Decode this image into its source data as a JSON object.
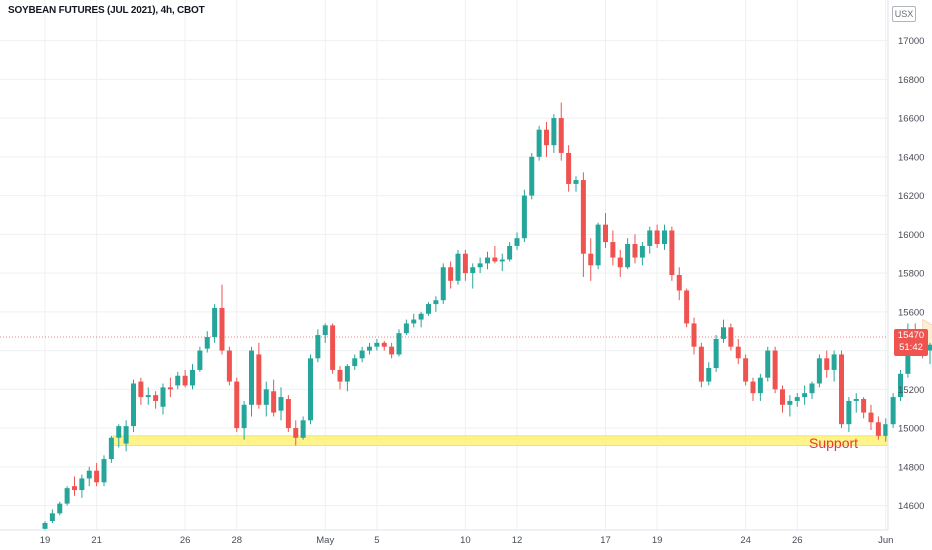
{
  "title": "SOYBEAN FUTURES (JUL 2021), 4h, CBOT",
  "currency_badge": "USX",
  "last_price_tag": {
    "price": "15470",
    "countdown": "51:42"
  },
  "annotations": {
    "support_label": "Support"
  },
  "colors": {
    "up": "#26a69a",
    "down": "#ef5350",
    "support": "#fff176",
    "wedge": "#fde9c8",
    "grid": "#eef0f3"
  },
  "chart_data": {
    "type": "candlestick",
    "title": "SOYBEAN FUTURES (JUL 2021), 4h, CBOT",
    "ylim": [
      14350,
      17100
    ],
    "y_ticks": [
      14600,
      14800,
      15000,
      15200,
      15400,
      15600,
      15800,
      16000,
      16200,
      16400,
      16600,
      16800,
      17000
    ],
    "x_ticks": [
      {
        "label": "19",
        "i": 0
      },
      {
        "label": "21",
        "i": 7
      },
      {
        "label": "26",
        "i": 19
      },
      {
        "label": "28",
        "i": 26
      },
      {
        "label": "May",
        "i": 38
      },
      {
        "label": "5",
        "i": 45
      },
      {
        "label": "10",
        "i": 57
      },
      {
        "label": "12",
        "i": 64
      },
      {
        "label": "17",
        "i": 76
      },
      {
        "label": "19",
        "i": 83
      },
      {
        "label": "24",
        "i": 95
      },
      {
        "label": "26",
        "i": 102
      },
      {
        "label": "Jun",
        "i": 114
      }
    ],
    "last_price": 15470,
    "support_level": [
      14910,
      14960
    ],
    "candles": [
      [
        14480,
        14520,
        14470,
        14510
      ],
      [
        14520,
        14580,
        14510,
        14560
      ],
      [
        14560,
        14620,
        14550,
        14610
      ],
      [
        14610,
        14700,
        14600,
        14690
      ],
      [
        14700,
        14750,
        14650,
        14680
      ],
      [
        14680,
        14760,
        14640,
        14740
      ],
      [
        14740,
        14800,
        14700,
        14780
      ],
      [
        14780,
        14820,
        14700,
        14720
      ],
      [
        14720,
        14860,
        14700,
        14840
      ],
      [
        14840,
        14960,
        14820,
        14950
      ],
      [
        14950,
        15020,
        14900,
        15010
      ],
      [
        14920,
        15040,
        14880,
        15010
      ],
      [
        15010,
        15250,
        14980,
        15230
      ],
      [
        15240,
        15260,
        15120,
        15160
      ],
      [
        15160,
        15210,
        15120,
        15170
      ],
      [
        15170,
        15190,
        15100,
        15140
      ],
      [
        15110,
        15230,
        15070,
        15210
      ],
      [
        15210,
        15260,
        15160,
        15200
      ],
      [
        15220,
        15290,
        15200,
        15270
      ],
      [
        15270,
        15300,
        15210,
        15220
      ],
      [
        15220,
        15330,
        15200,
        15300
      ],
      [
        15300,
        15420,
        15290,
        15400
      ],
      [
        15410,
        15500,
        15390,
        15470
      ],
      [
        15470,
        15640,
        15440,
        15620
      ],
      [
        15620,
        15740,
        15380,
        15400
      ],
      [
        15400,
        15420,
        15220,
        15240
      ],
      [
        15240,
        15260,
        14980,
        15000
      ],
      [
        15000,
        15140,
        14940,
        15120
      ],
      [
        15120,
        15420,
        15060,
        15400
      ],
      [
        15380,
        15440,
        15100,
        15120
      ],
      [
        15120,
        15240,
        15060,
        15200
      ],
      [
        15190,
        15250,
        15060,
        15080
      ],
      [
        15090,
        15210,
        15040,
        15160
      ],
      [
        15150,
        15170,
        14980,
        15000
      ],
      [
        15000,
        15040,
        14910,
        14950
      ],
      [
        14950,
        15060,
        14940,
        15040
      ],
      [
        15040,
        15380,
        15020,
        15360
      ],
      [
        15360,
        15510,
        15340,
        15480
      ],
      [
        15480,
        15540,
        15440,
        15530
      ],
      [
        15530,
        15540,
        15280,
        15300
      ],
      [
        15300,
        15320,
        15200,
        15240
      ],
      [
        15240,
        15330,
        15190,
        15320
      ],
      [
        15320,
        15380,
        15300,
        15360
      ],
      [
        15360,
        15420,
        15340,
        15400
      ],
      [
        15400,
        15440,
        15380,
        15420
      ],
      [
        15420,
        15460,
        15400,
        15440
      ],
      [
        15440,
        15450,
        15400,
        15420
      ],
      [
        15420,
        15440,
        15360,
        15380
      ],
      [
        15380,
        15510,
        15370,
        15490
      ],
      [
        15490,
        15560,
        15480,
        15540
      ],
      [
        15540,
        15590,
        15520,
        15560
      ],
      [
        15560,
        15600,
        15520,
        15590
      ],
      [
        15590,
        15650,
        15580,
        15640
      ],
      [
        15640,
        15680,
        15600,
        15660
      ],
      [
        15660,
        15850,
        15640,
        15830
      ],
      [
        15830,
        15860,
        15720,
        15760
      ],
      [
        15760,
        15920,
        15740,
        15900
      ],
      [
        15900,
        15920,
        15760,
        15800
      ],
      [
        15800,
        15850,
        15720,
        15830
      ],
      [
        15830,
        15880,
        15800,
        15850
      ],
      [
        15850,
        15910,
        15820,
        15880
      ],
      [
        15880,
        15940,
        15850,
        15860
      ],
      [
        15860,
        15900,
        15810,
        15870
      ],
      [
        15870,
        15960,
        15860,
        15940
      ],
      [
        15940,
        16010,
        15920,
        15980
      ],
      [
        15980,
        16230,
        15960,
        16200
      ],
      [
        16200,
        16420,
        16180,
        16400
      ],
      [
        16400,
        16560,
        16380,
        16540
      ],
      [
        16540,
        16580,
        16400,
        16460
      ],
      [
        16460,
        16620,
        16420,
        16600
      ],
      [
        16600,
        16680,
        16380,
        16420
      ],
      [
        16420,
        16460,
        16220,
        16260
      ],
      [
        16260,
        16300,
        16220,
        16280
      ],
      [
        16280,
        16320,
        15780,
        15900
      ],
      [
        15900,
        15980,
        15760,
        15840
      ],
      [
        15840,
        16060,
        15820,
        16050
      ],
      [
        16050,
        16110,
        15930,
        15960
      ],
      [
        15960,
        16020,
        15840,
        15880
      ],
      [
        15880,
        15920,
        15780,
        15830
      ],
      [
        15830,
        15980,
        15820,
        15950
      ],
      [
        15950,
        16000,
        15850,
        15880
      ],
      [
        15880,
        15960,
        15840,
        15940
      ],
      [
        15940,
        16040,
        15900,
        16020
      ],
      [
        16020,
        16050,
        15930,
        15950
      ],
      [
        15950,
        16050,
        15920,
        16020
      ],
      [
        16020,
        16040,
        15760,
        15790
      ],
      [
        15790,
        15830,
        15660,
        15710
      ],
      [
        15710,
        15720,
        15520,
        15540
      ],
      [
        15540,
        15570,
        15380,
        15420
      ],
      [
        15420,
        15440,
        15210,
        15240
      ],
      [
        15240,
        15340,
        15220,
        15310
      ],
      [
        15310,
        15480,
        15290,
        15460
      ],
      [
        15460,
        15560,
        15440,
        15520
      ],
      [
        15520,
        15540,
        15400,
        15420
      ],
      [
        15420,
        15460,
        15330,
        15360
      ],
      [
        15360,
        15380,
        15220,
        15240
      ],
      [
        15240,
        15260,
        15140,
        15180
      ],
      [
        15180,
        15280,
        15140,
        15260
      ],
      [
        15260,
        15420,
        15240,
        15400
      ],
      [
        15400,
        15420,
        15180,
        15200
      ],
      [
        15200,
        15220,
        15080,
        15120
      ],
      [
        15120,
        15170,
        15060,
        15140
      ],
      [
        15140,
        15180,
        15110,
        15160
      ],
      [
        15160,
        15220,
        15120,
        15180
      ],
      [
        15180,
        15240,
        15150,
        15230
      ],
      [
        15230,
        15380,
        15210,
        15360
      ],
      [
        15360,
        15400,
        15260,
        15300
      ],
      [
        15300,
        15400,
        15240,
        15380
      ],
      [
        15380,
        15400,
        15000,
        15020
      ],
      [
        15020,
        15160,
        14980,
        15140
      ],
      [
        15140,
        15180,
        15080,
        15150
      ],
      [
        15150,
        15160,
        15050,
        15080
      ],
      [
        15080,
        15120,
        14990,
        15030
      ],
      [
        15030,
        15060,
        14940,
        14960
      ],
      [
        14960,
        15050,
        14930,
        15020
      ],
      [
        15020,
        15180,
        15000,
        15160
      ],
      [
        15160,
        15300,
        15140,
        15280
      ],
      [
        15280,
        15540,
        15260,
        15500
      ],
      [
        15500,
        15540,
        15440,
        15460
      ],
      [
        15460,
        15500,
        15360,
        15400
      ],
      [
        15400,
        15440,
        15330,
        15430
      ],
      [
        15430,
        15520,
        15380,
        15470
      ]
    ],
    "wedge": [
      [
        119,
        15560,
        15460
      ],
      [
        125,
        15430,
        15220
      ]
    ]
  }
}
